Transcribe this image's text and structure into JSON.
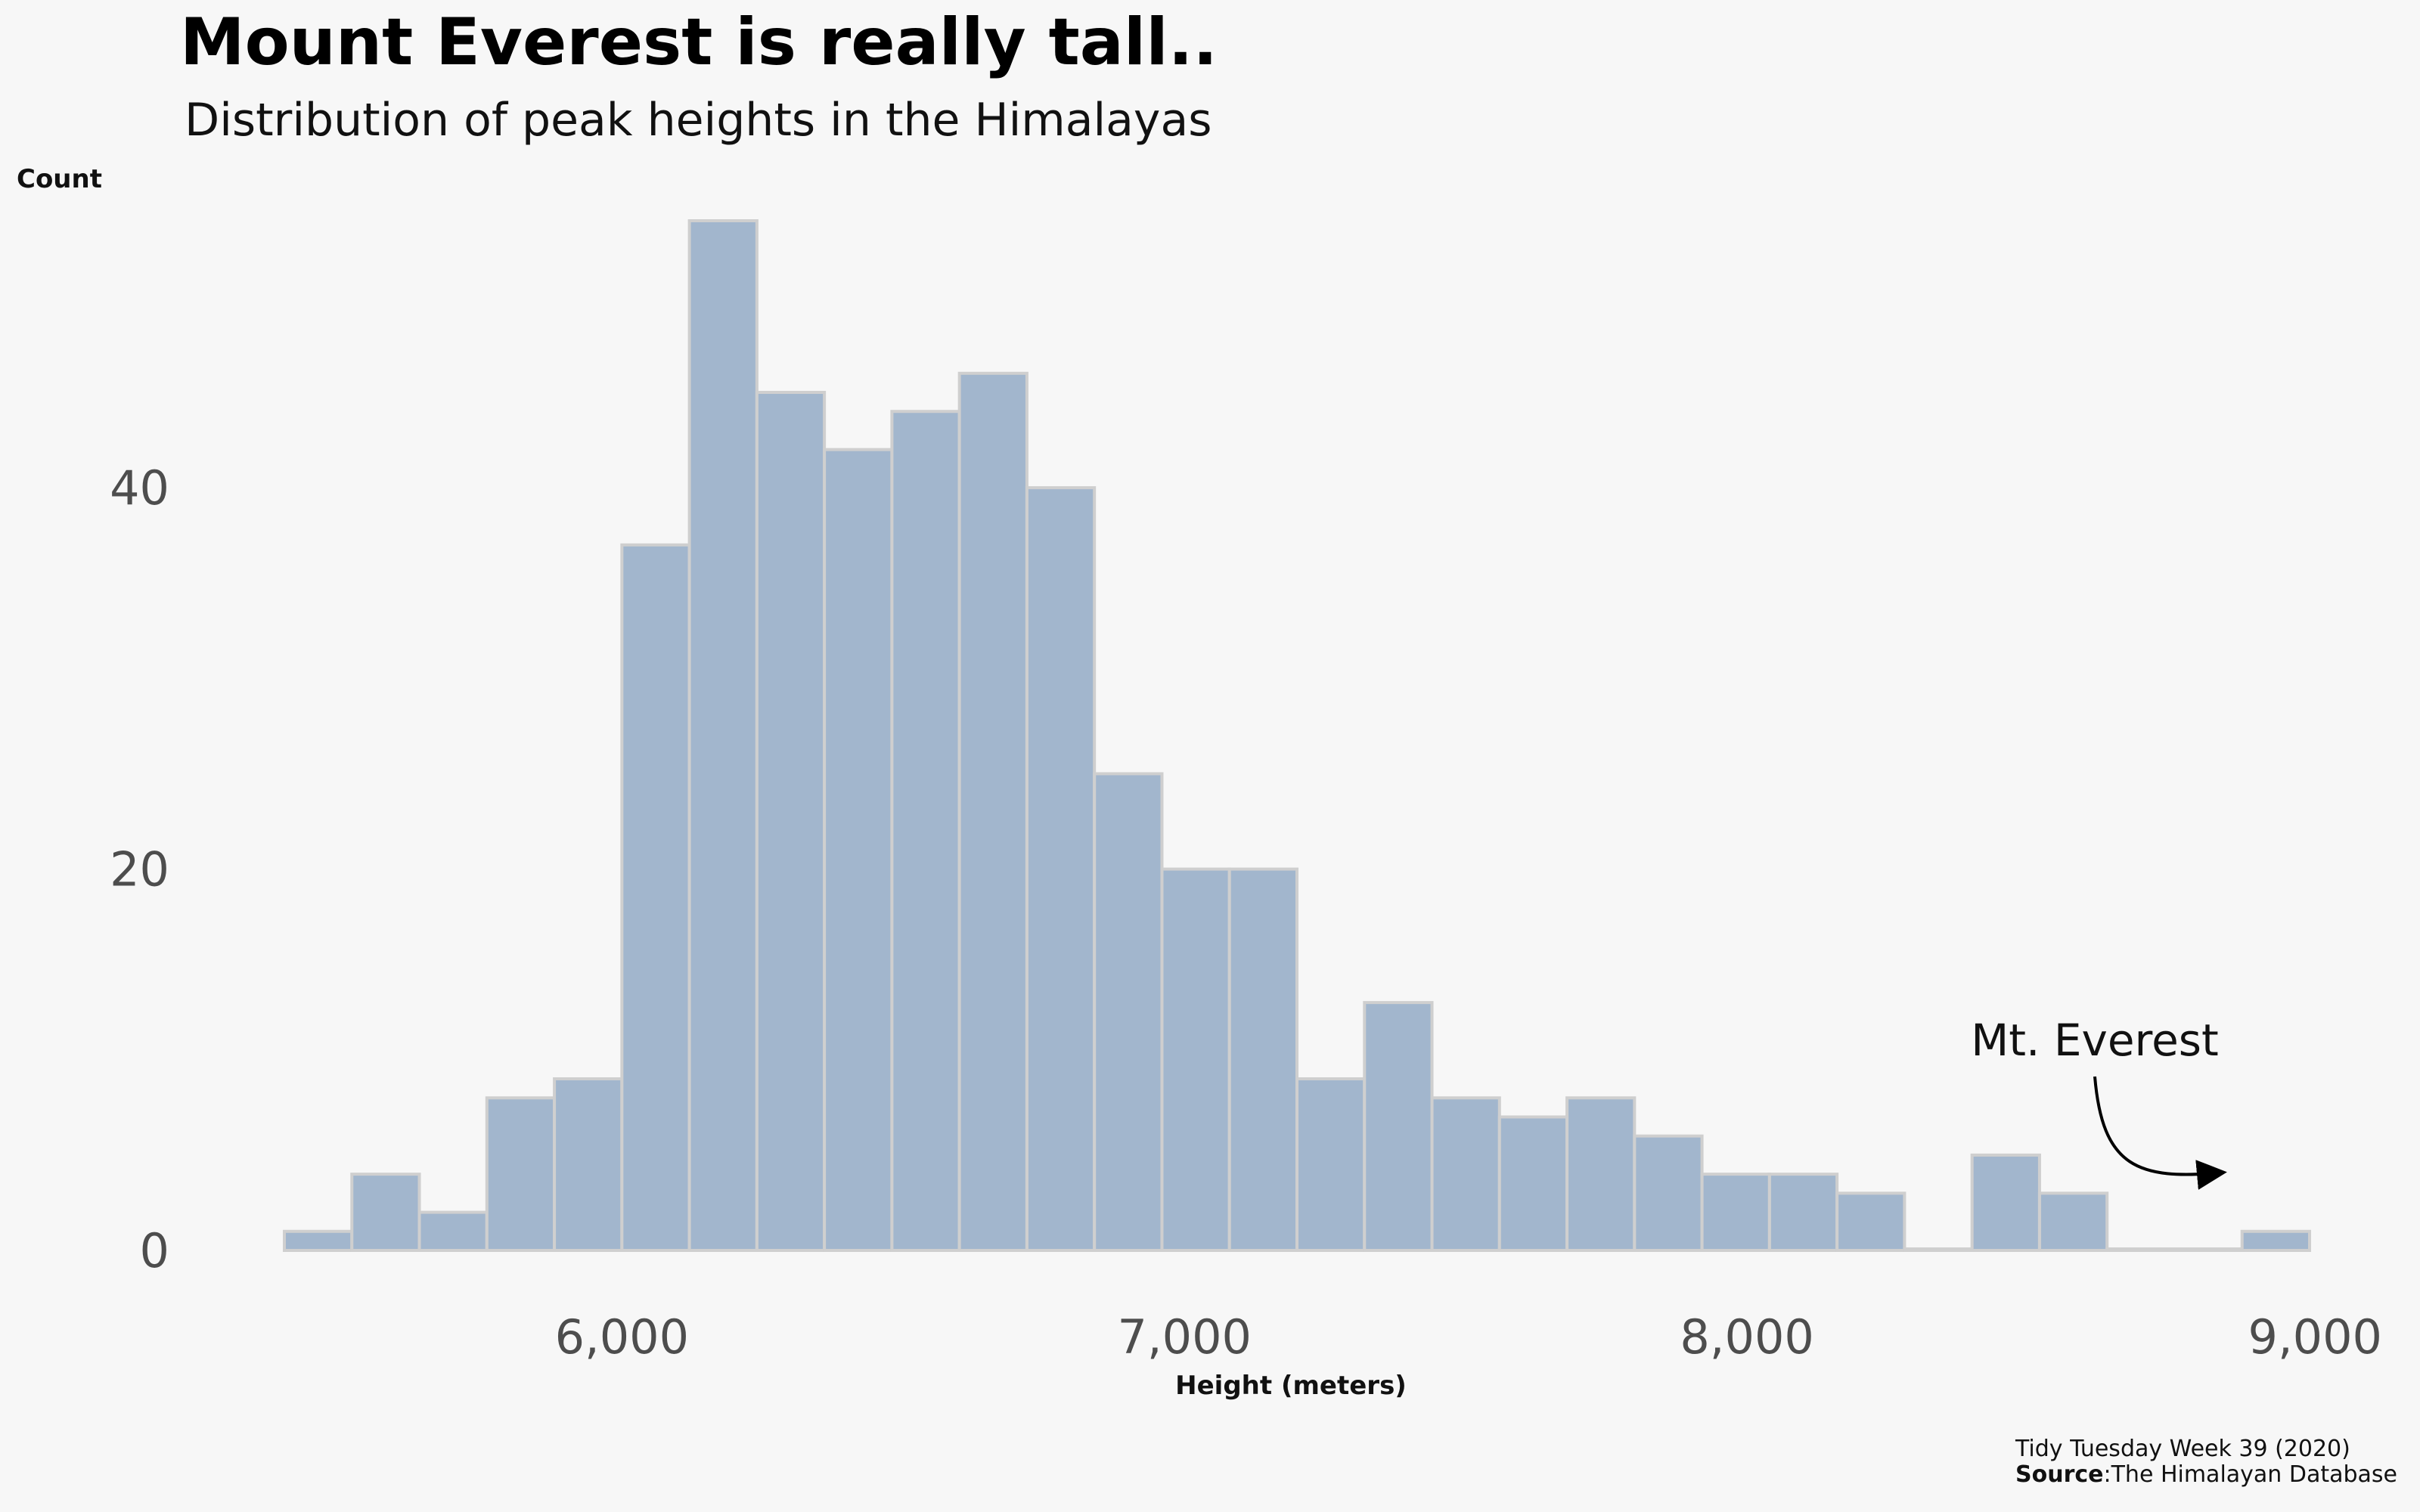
{
  "chart_data": {
    "type": "bar",
    "title": "Mount Everest is really tall..",
    "subtitle": "Distribution of peak heights in the Himalayas",
    "xlabel": "Height (meters)",
    "ylabel": "Count",
    "bin_width": 120,
    "bins": [
      {
        "start": 5400,
        "end": 5520,
        "count": 1
      },
      {
        "start": 5520,
        "end": 5640,
        "count": 4
      },
      {
        "start": 5640,
        "end": 5760,
        "count": 2
      },
      {
        "start": 5760,
        "end": 5880,
        "count": 8
      },
      {
        "start": 5880,
        "end": 6000,
        "count": 9
      },
      {
        "start": 6000,
        "end": 6120,
        "count": 37
      },
      {
        "start": 6120,
        "end": 6240,
        "count": 54
      },
      {
        "start": 6240,
        "end": 6360,
        "count": 45
      },
      {
        "start": 6360,
        "end": 6480,
        "count": 42
      },
      {
        "start": 6480,
        "end": 6600,
        "count": 44
      },
      {
        "start": 6600,
        "end": 6720,
        "count": 46
      },
      {
        "start": 6720,
        "end": 6840,
        "count": 40
      },
      {
        "start": 6840,
        "end": 6960,
        "count": 25
      },
      {
        "start": 6960,
        "end": 7080,
        "count": 20
      },
      {
        "start": 7080,
        "end": 7200,
        "count": 20
      },
      {
        "start": 7200,
        "end": 7320,
        "count": 9
      },
      {
        "start": 7320,
        "end": 7440,
        "count": 13
      },
      {
        "start": 7440,
        "end": 7560,
        "count": 8
      },
      {
        "start": 7560,
        "end": 7680,
        "count": 7
      },
      {
        "start": 7680,
        "end": 7800,
        "count": 8
      },
      {
        "start": 7800,
        "end": 7920,
        "count": 6
      },
      {
        "start": 7920,
        "end": 8040,
        "count": 4
      },
      {
        "start": 8040,
        "end": 8160,
        "count": 4
      },
      {
        "start": 8160,
        "end": 8280,
        "count": 3
      },
      {
        "start": 8280,
        "end": 8400,
        "count": 0
      },
      {
        "start": 8400,
        "end": 8520,
        "count": 5
      },
      {
        "start": 8520,
        "end": 8640,
        "count": 3
      },
      {
        "start": 8640,
        "end": 8760,
        "count": 0
      },
      {
        "start": 8760,
        "end": 8880,
        "count": 0
      },
      {
        "start": 8880,
        "end": 9000,
        "count": 1
      }
    ],
    "xlim": [
      5400,
      9000
    ],
    "ylim": [
      0,
      54
    ],
    "x_ticks": [
      6000,
      7000,
      8000,
      9000
    ],
    "x_tick_labels": [
      "6,000",
      "7,000",
      "8,000",
      "9,000"
    ],
    "y_ticks": [
      0,
      20,
      40
    ],
    "y_tick_labels": [
      "0",
      "20",
      "40"
    ],
    "grid": false,
    "legend": "none",
    "bar_fill": "#a2b6cd",
    "bar_stroke": "#cfcfcf",
    "annotation": {
      "text": "Mt. Everest",
      "target_x": 8848,
      "target_count": 4
    }
  },
  "caption": {
    "line1": "Tidy Tuesday Week 39 (2020)",
    "source_label": "Source",
    "source_value": ":The Himalayan Database"
  }
}
